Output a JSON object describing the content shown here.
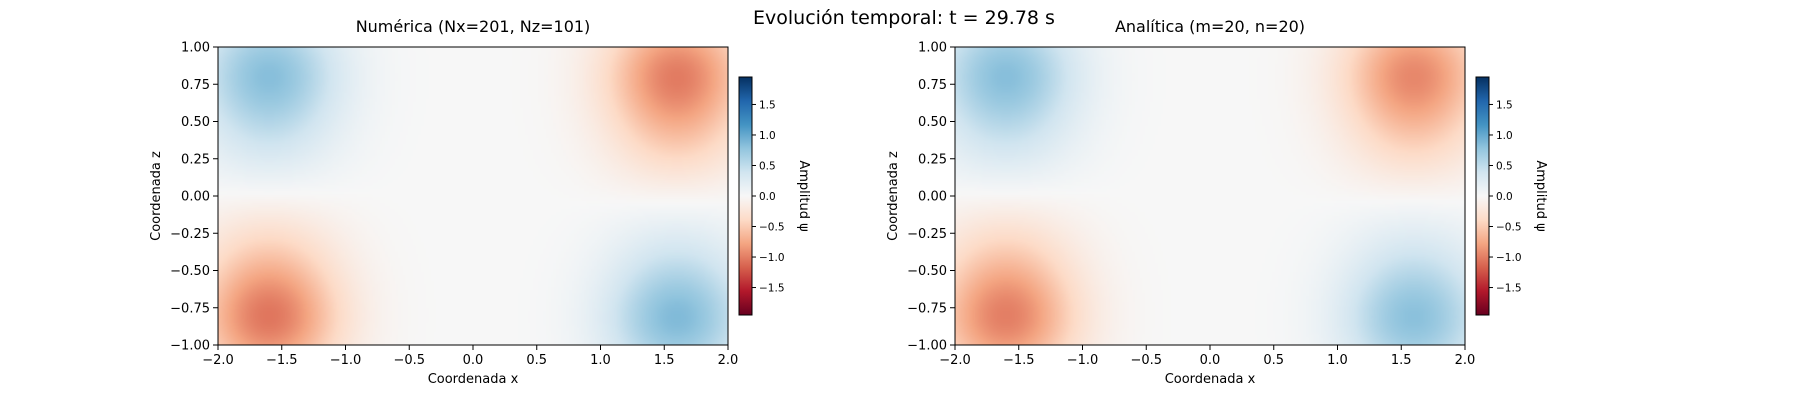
{
  "figure": {
    "suptitle": "Evolución temporal: t = 29.78 s"
  },
  "chart_data": [
    {
      "type": "heatmap",
      "title": "Numérica (Nx=201, Nz=101)",
      "xlabel": "Coordenada x",
      "ylabel": "Coordenada z",
      "xlim": [
        -2.0,
        2.0
      ],
      "ylim": [
        -1.0,
        1.0
      ],
      "xticks": [
        "−2.0",
        "−1.5",
        "−1.0",
        "−0.5",
        "0.0",
        "0.5",
        "1.0",
        "1.5",
        "2.0"
      ],
      "yticks": [
        "1.00",
        "0.75",
        "0.50",
        "0.25",
        "0.00",
        "−0.25",
        "−0.50",
        "−0.75",
        "−1.00"
      ],
      "colormap": "RdBu",
      "colorbar": {
        "label": "Amplitud ψ",
        "range": [
          -1.95,
          1.95
        ],
        "ticks": [
          "1.5",
          "1.0",
          "0.5",
          "0.0",
          "−0.5",
          "−1.0",
          "−1.5"
        ]
      },
      "field_blobs": [
        {
          "x": -1.6,
          "z": 0.85,
          "amplitude": 0.75
        },
        {
          "x": 1.6,
          "z": 0.85,
          "amplitude": -0.9
        },
        {
          "x": -1.6,
          "z": -0.85,
          "amplitude": -0.95
        },
        {
          "x": 1.6,
          "z": -0.85,
          "amplitude": 0.8
        },
        {
          "x": 1.6,
          "z": 0.4,
          "amplitude": -0.35
        },
        {
          "x": -1.6,
          "z": -0.4,
          "amplitude": -0.3
        },
        {
          "x": -1.6,
          "z": 0.4,
          "amplitude": 0.25
        },
        {
          "x": 1.6,
          "z": -0.4,
          "amplitude": 0.2
        }
      ]
    },
    {
      "type": "heatmap",
      "title": "Analítica (m=20, n=20)",
      "xlabel": "Coordenada x",
      "ylabel": "Coordenada z",
      "xlim": [
        -2.0,
        2.0
      ],
      "ylim": [
        -1.0,
        1.0
      ],
      "xticks": [
        "−2.0",
        "−1.5",
        "−1.0",
        "−0.5",
        "0.0",
        "0.5",
        "1.0",
        "1.5",
        "2.0"
      ],
      "yticks": [
        "1.00",
        "0.75",
        "0.50",
        "0.25",
        "0.00",
        "−0.25",
        "−0.50",
        "−0.75",
        "−1.00"
      ],
      "colormap": "RdBu",
      "colorbar": {
        "label": "Amplitud ψ",
        "range": [
          -1.95,
          1.95
        ],
        "ticks": [
          "1.5",
          "1.0",
          "0.5",
          "0.0",
          "−0.5",
          "−1.0",
          "−1.5"
        ]
      },
      "field_blobs": [
        {
          "x": -1.6,
          "z": 0.85,
          "amplitude": 0.75
        },
        {
          "x": 1.6,
          "z": 0.85,
          "amplitude": -0.85
        },
        {
          "x": -1.6,
          "z": -0.85,
          "amplitude": -0.9
        },
        {
          "x": 1.6,
          "z": -0.85,
          "amplitude": 0.75
        },
        {
          "x": 1.6,
          "z": 0.4,
          "amplitude": -0.3
        },
        {
          "x": -1.6,
          "z": -0.4,
          "amplitude": -0.3
        },
        {
          "x": -1.6,
          "z": 0.4,
          "amplitude": 0.25
        },
        {
          "x": 1.6,
          "z": -0.4,
          "amplitude": 0.2
        }
      ]
    }
  ]
}
